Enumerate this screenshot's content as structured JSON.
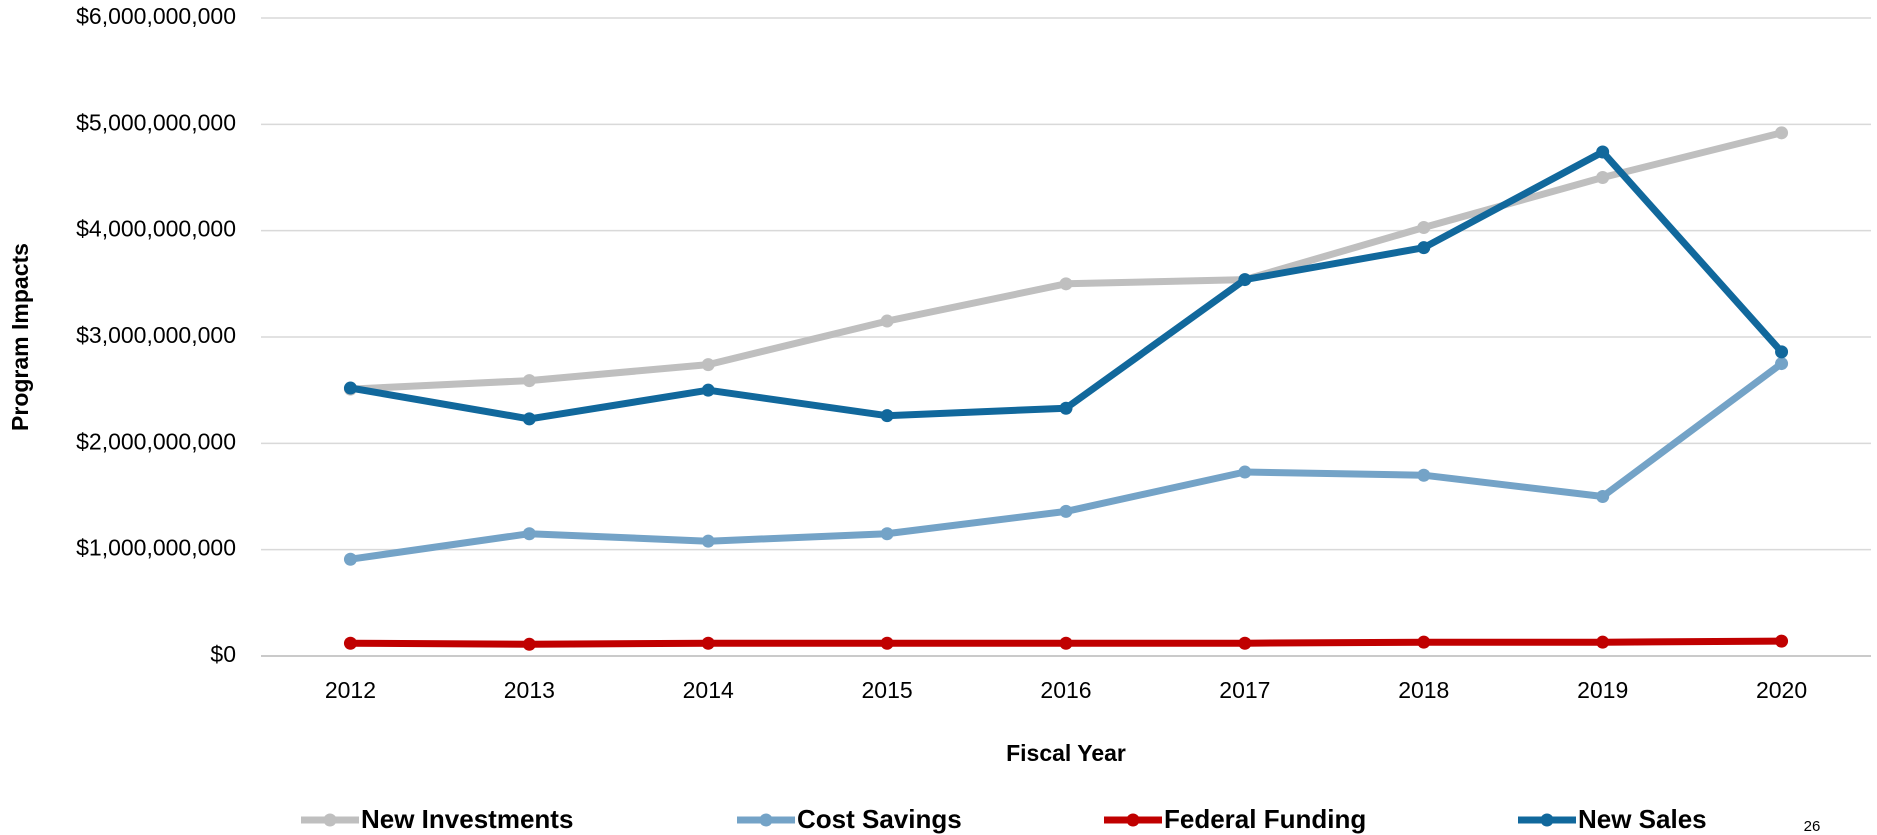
{
  "chart_data": {
    "type": "line",
    "x_label": "Fiscal Year",
    "y_label": "Program Impacts",
    "categories": [
      "2012",
      "2013",
      "2014",
      "2015",
      "2016",
      "2017",
      "2018",
      "2019",
      "2020"
    ],
    "series": [
      {
        "name": "New Investments",
        "color": "#bfbfbf",
        "values": [
          2510000000,
          2590000000,
          2740000000,
          3150000000,
          3500000000,
          3540000000,
          4030000000,
          4500000000,
          4920000000
        ]
      },
      {
        "name": "Cost Savings",
        "color": "#74a3c7",
        "values": [
          910000000,
          1150000000,
          1080000000,
          1150000000,
          1360000000,
          1730000000,
          1700000000,
          1500000000,
          2750000000
        ]
      },
      {
        "name": "Federal Funding",
        "color": "#c00000",
        "values": [
          120000000,
          110000000,
          120000000,
          120000000,
          120000000,
          120000000,
          130000000,
          130000000,
          140000000
        ]
      },
      {
        "name": "New Sales",
        "color": "#11689c",
        "values": [
          2520000000,
          2230000000,
          2500000000,
          2260000000,
          2330000000,
          3540000000,
          3840000000,
          4740000000,
          2860000000
        ]
      }
    ],
    "ylim": [
      0,
      6000000000
    ],
    "yticks": [
      {
        "value": 0,
        "label": "$0"
      },
      {
        "value": 1000000000,
        "label": "$1,000,000,000"
      },
      {
        "value": 2000000000,
        "label": "$2,000,000,000"
      },
      {
        "value": 3000000000,
        "label": "$3,000,000,000"
      },
      {
        "value": 4000000000,
        "label": "$4,000,000,000"
      },
      {
        "value": 5000000000,
        "label": "$5,000,000,000"
      },
      {
        "value": 6000000000,
        "label": "$6,000,000,000"
      }
    ],
    "grid": true,
    "legend": "bottom",
    "page_number": "26"
  }
}
